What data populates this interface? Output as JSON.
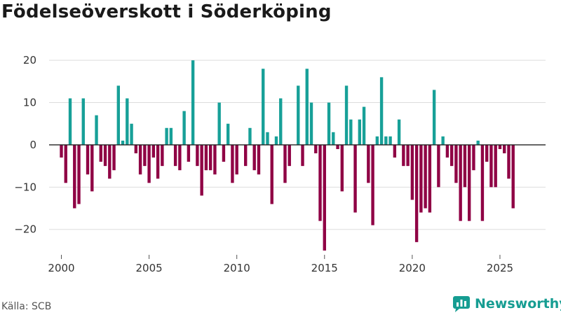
{
  "header": {
    "title": "Födelseöverskott i Söderköping"
  },
  "footer": {
    "source": "Källa: SCB",
    "brand": "Newsworthy"
  },
  "colors": {
    "positive": "#17a098",
    "negative": "#8f0044",
    "brand": "#169d92"
  },
  "chart_data": {
    "type": "bar",
    "title": "Födelseöverskott i Söderköping",
    "xlabel": "",
    "ylabel": "",
    "ylim": [
      -27,
      24
    ],
    "xlim": [
      1999.3,
      2027.6
    ],
    "y_ticks": [
      20,
      10,
      0,
      -10,
      -20
    ],
    "y_tick_labels": [
      "20",
      "10",
      "0",
      "−10",
      "−20"
    ],
    "x_ticks": [
      2000,
      2005,
      2010,
      2015,
      2020,
      2025
    ],
    "x_tick_labels": [
      "2000",
      "2005",
      "2010",
      "2015",
      "2020",
      "2025"
    ],
    "grid": true,
    "period": "quarterly",
    "start": 2000.0,
    "step": 0.25,
    "values": [
      -3,
      -9,
      11,
      -15,
      -14,
      11,
      -7,
      -11,
      7,
      -4,
      -5,
      -8,
      -6,
      14,
      1,
      11,
      5,
      -2,
      -7,
      -5,
      -9,
      -3,
      -8,
      -5,
      4,
      4,
      -5,
      -6,
      8,
      -4,
      20,
      -5,
      -12,
      -6,
      -6,
      -7,
      10,
      -4,
      5,
      -9,
      -7,
      0,
      -5,
      4,
      -6,
      -7,
      18,
      3,
      -14,
      2,
      11,
      -9,
      -5,
      0,
      14,
      -5,
      18,
      10,
      -2,
      -18,
      -25,
      10,
      3,
      -1,
      -11,
      14,
      6,
      -16,
      6,
      9,
      -9,
      -19,
      2,
      16,
      2,
      2,
      -3,
      6,
      -5,
      -5,
      -13,
      -23,
      -16,
      -15,
      -16,
      13,
      -10,
      2,
      -3,
      -5,
      -9,
      -18,
      -10,
      -18,
      -6,
      1,
      -18,
      -4,
      -10,
      -10,
      -1,
      -2,
      -8,
      -15
    ]
  }
}
